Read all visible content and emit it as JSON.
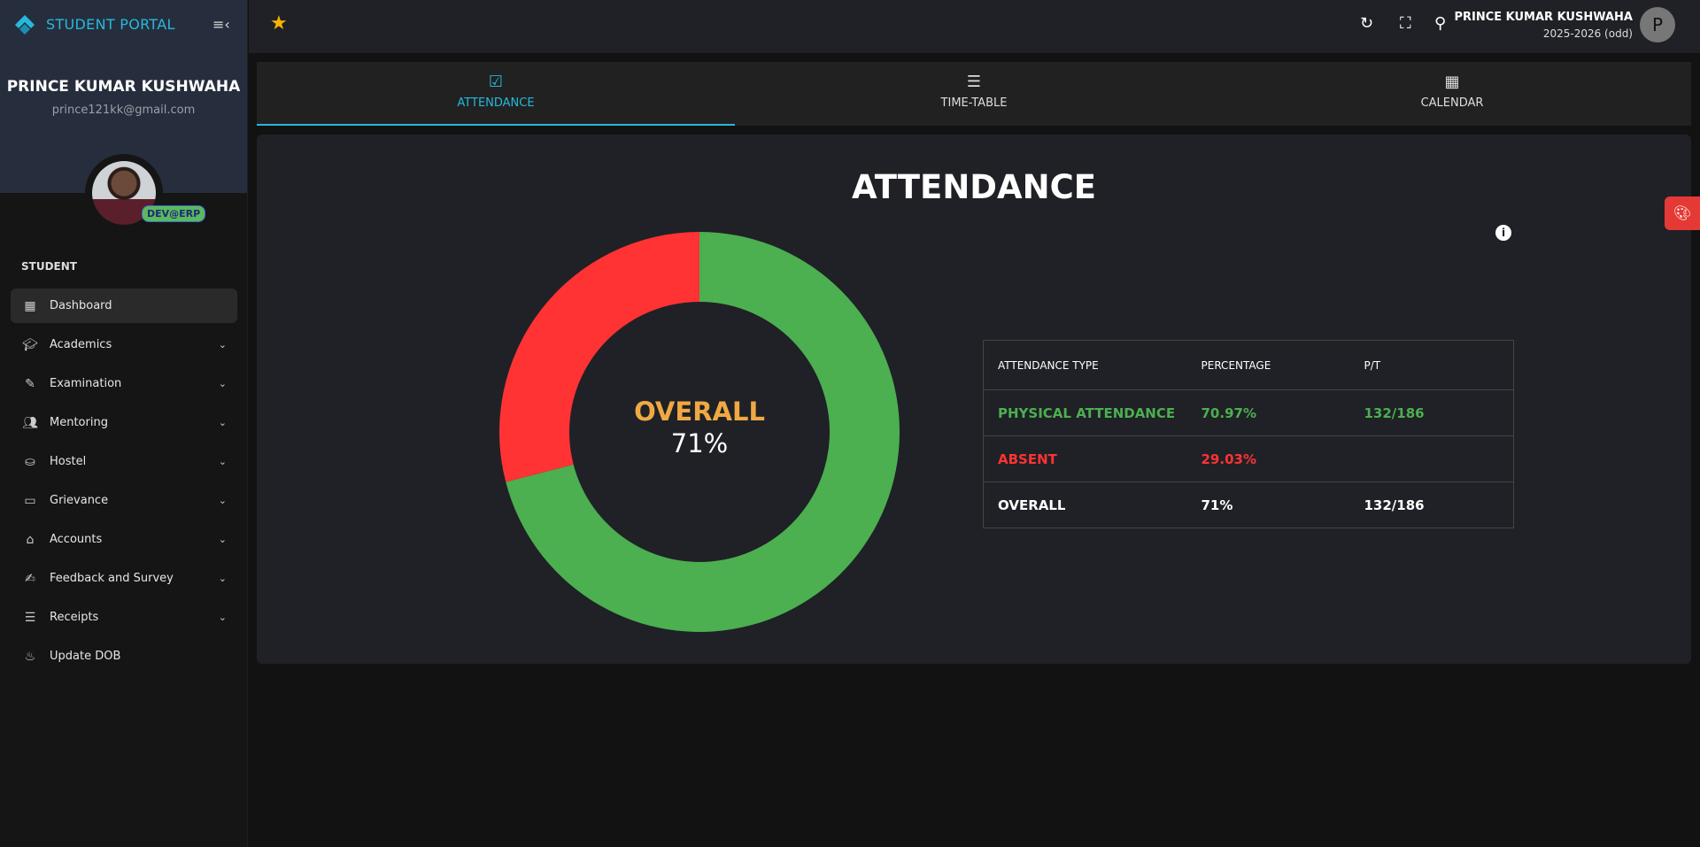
{
  "sidebar": {
    "brand": "STUDENT PORTAL",
    "user_name": "PRINCE KUMAR KUSHWAHA",
    "user_email": "prince121kk@gmail.com",
    "badge": "DEV@ERP",
    "section": "STUDENT",
    "items": [
      {
        "label": "Dashboard",
        "icon": "dashboard-icon"
      },
      {
        "label": "Academics",
        "icon": "school-icon"
      },
      {
        "label": "Examination",
        "icon": "pencil-icon"
      },
      {
        "label": "Mentoring",
        "icon": "people-icon"
      },
      {
        "label": "Hostel",
        "icon": "bed-icon"
      },
      {
        "label": "Grievance",
        "icon": "ticket-icon"
      },
      {
        "label": "Accounts",
        "icon": "bank-icon"
      },
      {
        "label": "Feedback and Survey",
        "icon": "feedback-icon"
      },
      {
        "label": "Receipts",
        "icon": "receipt-icon"
      },
      {
        "label": "Update DOB",
        "icon": "cake-icon"
      }
    ]
  },
  "topbar": {
    "user_name": "PRINCE KUMAR KUSHWAHA",
    "session": "2025-2026 (odd)",
    "avatar_letter": "P"
  },
  "tabs": [
    "ATTENDANCE",
    "TIME-TABLE",
    "CALENDAR"
  ],
  "main": {
    "title": "ATTENDANCE",
    "center_label": "OVERALL",
    "center_value": "71%",
    "table": {
      "headers": [
        "ATTENDANCE TYPE",
        "PERCENTAGE",
        "P/T"
      ],
      "rows": [
        [
          "PHYSICAL ATTENDANCE",
          "70.97%",
          "132/186"
        ],
        [
          "ABSENT",
          "29.03%",
          ""
        ],
        [
          "OVERALL",
          "71%",
          "132/186"
        ]
      ]
    }
  },
  "chart_data": {
    "type": "pie",
    "title": "ATTENDANCE",
    "categories": [
      "Present",
      "Absent"
    ],
    "values": [
      70.97,
      29.03
    ],
    "colors": [
      "#4caf50",
      "#ff3333"
    ]
  }
}
